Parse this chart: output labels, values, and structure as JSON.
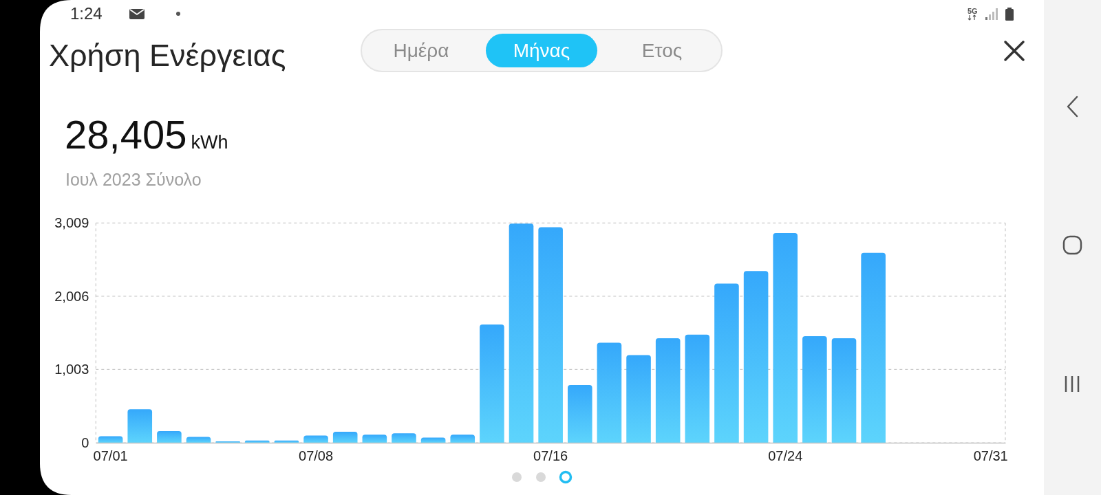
{
  "chart_data": {
    "type": "bar",
    "title": "Χρήση Ενέργειας",
    "categories": [
      "07/01",
      null,
      null,
      null,
      null,
      null,
      null,
      "07/08",
      null,
      null,
      null,
      null,
      null,
      null,
      null,
      "07/16",
      null,
      null,
      null,
      null,
      null,
      null,
      null,
      "07/24",
      null,
      null,
      null,
      null,
      null,
      null,
      "07/31"
    ],
    "values": [
      90,
      460,
      160,
      80,
      20,
      30,
      30,
      100,
      150,
      110,
      130,
      70,
      110,
      1620,
      3000,
      2950,
      790,
      1370,
      1200,
      1430,
      1480,
      2180,
      2350,
      2870,
      1460,
      1430,
      2600,
      null,
      null,
      null,
      null
    ],
    "color": "#35a8fb",
    "ylim": [
      0,
      3009
    ],
    "yticks": [
      0,
      {
        "value": 1003,
        "label": "1,003"
      },
      {
        "value": 2006,
        "label": "2,006"
      },
      {
        "value": 3009,
        "label": "3,009"
      }
    ],
    "grid": "y",
    "annotations": [
      "1:24",
      "Ημέρα",
      "Μήνας",
      "Ετος",
      "28,405",
      "kWh",
      "Ιουλ 2023 Σύνολο",
      "5G"
    ]
  }
}
